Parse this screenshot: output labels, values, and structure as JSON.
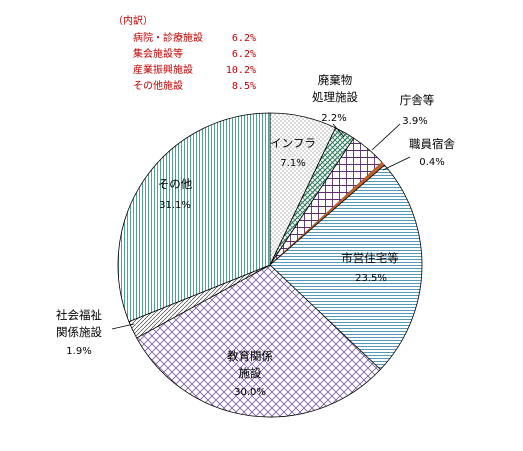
{
  "chart_data": {
    "type": "pie",
    "slices": [
      {
        "label": "インフラ",
        "value": 7.1,
        "pct_text": "7.1%",
        "color": "#7a7a7a",
        "pattern": "dots"
      },
      {
        "label": "廃棄物処理施設",
        "value": 2.2,
        "pct_text": "2.2%",
        "color": "#2e7d5e",
        "pattern": "diag"
      },
      {
        "label": "庁舎等",
        "value": 3.9,
        "pct_text": "3.9%",
        "color": "#5a2d6e",
        "pattern": "cross"
      },
      {
        "label": "職員宿舎",
        "value": 0.4,
        "pct_text": "0.4%",
        "color": "#c0602a",
        "pattern": "solid"
      },
      {
        "label": "市営住宅等",
        "value": 23.5,
        "pct_text": "23.5%",
        "color": "#3f8fb3",
        "pattern": "hlines"
      },
      {
        "label": "教育関係施設",
        "value": 30.0,
        "pct_text": "30.0%",
        "color": "#7a5a9a",
        "pattern": "diamond"
      },
      {
        "label": "社会福祉関係施設",
        "value": 1.9,
        "pct_text": "1.9%",
        "color": "#444444",
        "pattern": "diag2"
      },
      {
        "label": "その他",
        "value": 31.1,
        "pct_text": "31.1%",
        "color": "#3a9a88",
        "pattern": "vlines"
      }
    ],
    "label_lines": {
      "インフラ": [
        "インフラ"
      ],
      "廃棄物処理施設": [
        "廃棄物",
        "処理施設"
      ],
      "庁舎等": [
        "庁舎等"
      ],
      "職員宿舎": [
        "職員宿舎"
      ],
      "市営住宅等": [
        "市営住宅等"
      ],
      "教育関係施設": [
        "教育関係",
        "施設"
      ],
      "社会福祉関係施設": [
        "社会福祉",
        "関係施設"
      ],
      "その他": [
        "その他"
      ]
    },
    "breakdown": {
      "heading": "（内訳）",
      "items": [
        {
          "label": "病院・診療施設",
          "value": "6.2%"
        },
        {
          "label": "集会施設等",
          "value": "6.2%"
        },
        {
          "label": "産業振興施設",
          "value": "10.2%"
        },
        {
          "label": "その他施設",
          "value": "8.5%"
        }
      ],
      "color": "#c00000"
    }
  }
}
